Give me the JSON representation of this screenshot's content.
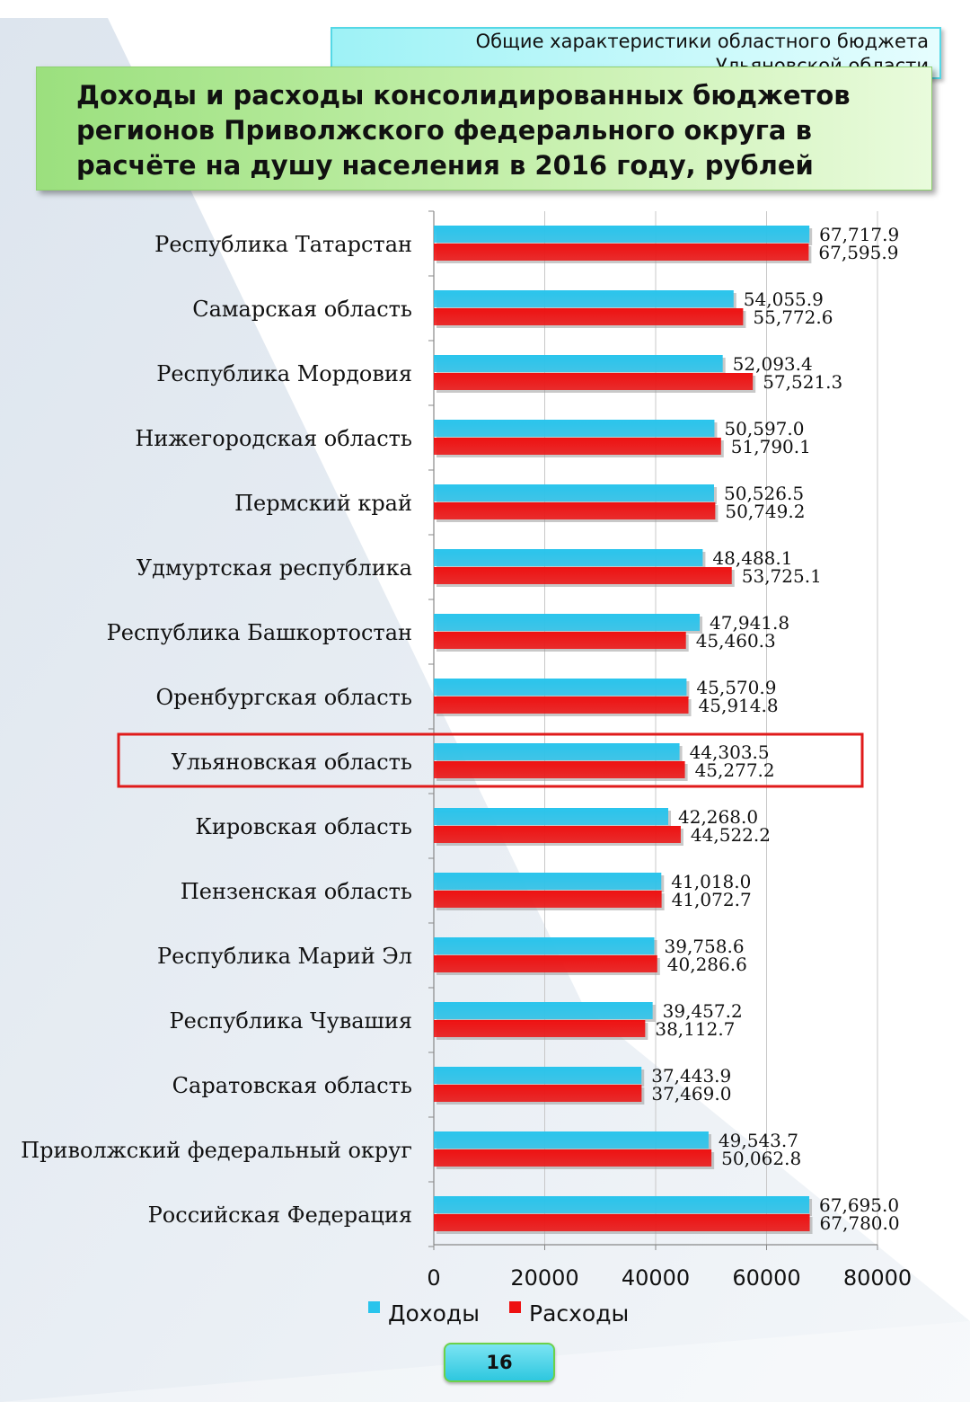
{
  "header": {
    "line1": "Общие характеристики областного бюджета",
    "line2": "Ульяновской области"
  },
  "title": {
    "line1": "Доходы и расходы консолидированных бюджетов",
    "line2": "регионов Приволжского федерального округа в",
    "line3": "расчёте на душу населения в 2016 году, рублей"
  },
  "page_number": "16",
  "colors": {
    "income": "#29c4ec",
    "expense": "#ee1111",
    "highlight": "#e01b1b"
  },
  "chart_data": {
    "type": "bar",
    "orientation": "horizontal",
    "title": "Доходы и расходы консолидированных бюджетов регионов Приволжского федерального округа в расчёте на душу населения в 2016 году, рублей",
    "categories": [
      "Республика Татарстан",
      "Самарская область",
      "Республика Мордовия",
      "Нижегородская область",
      "Пермский край",
      "Удмуртская республика",
      "Республика Башкортостан",
      "Оренбургская область",
      "Ульяновская область",
      "Кировская область",
      "Пензенская область",
      "Республика Марий Эл",
      "Республика Чувашия",
      "Саратовская область",
      "Приволжский федеральный округ",
      "Российская Федерация"
    ],
    "series": [
      {
        "name": "Доходы",
        "values": [
          67717.9,
          54055.9,
          52093.4,
          50597.0,
          50526.5,
          48488.1,
          47941.8,
          45570.9,
          44303.5,
          42268.0,
          41018.0,
          39758.6,
          39457.2,
          37443.9,
          49543.7,
          67695.0
        ],
        "labels": [
          "67,717.9",
          "54,055.9",
          "52,093.4",
          "50,597.0",
          "50,526.5",
          "48,488.1",
          "47,941.8",
          "45,570.9",
          "44,303.5",
          "42,268.0",
          "41,018.0",
          "39,758.6",
          "39,457.2",
          "37,443.9",
          "49,543.7",
          "67,695.0"
        ]
      },
      {
        "name": "Расходы",
        "values": [
          67595.9,
          55772.6,
          57521.3,
          51790.1,
          50749.2,
          53725.1,
          45460.3,
          45914.8,
          45277.2,
          44522.2,
          41072.7,
          40286.6,
          38112.7,
          37469.0,
          50062.8,
          67780.0
        ],
        "labels": [
          "67,595.9",
          "55,772.6",
          "57,521.3",
          "51,790.1",
          "50,749.2",
          "53,725.1",
          "45,460.3",
          "45,914.8",
          "45,277.2",
          "44,522.2",
          "41,072.7",
          "40,286.6",
          "38,112.7",
          "37,469.0",
          "50,062.8",
          "67,780.0"
        ]
      }
    ],
    "xlim": [
      0,
      80000
    ],
    "xticks": [
      0,
      20000,
      40000,
      60000,
      80000
    ],
    "xtick_labels": [
      "0",
      "20000",
      "40000",
      "60000",
      "80000"
    ],
    "grid": "vertical",
    "legend": "bottom",
    "highlighted_category": "Ульяновская область"
  }
}
